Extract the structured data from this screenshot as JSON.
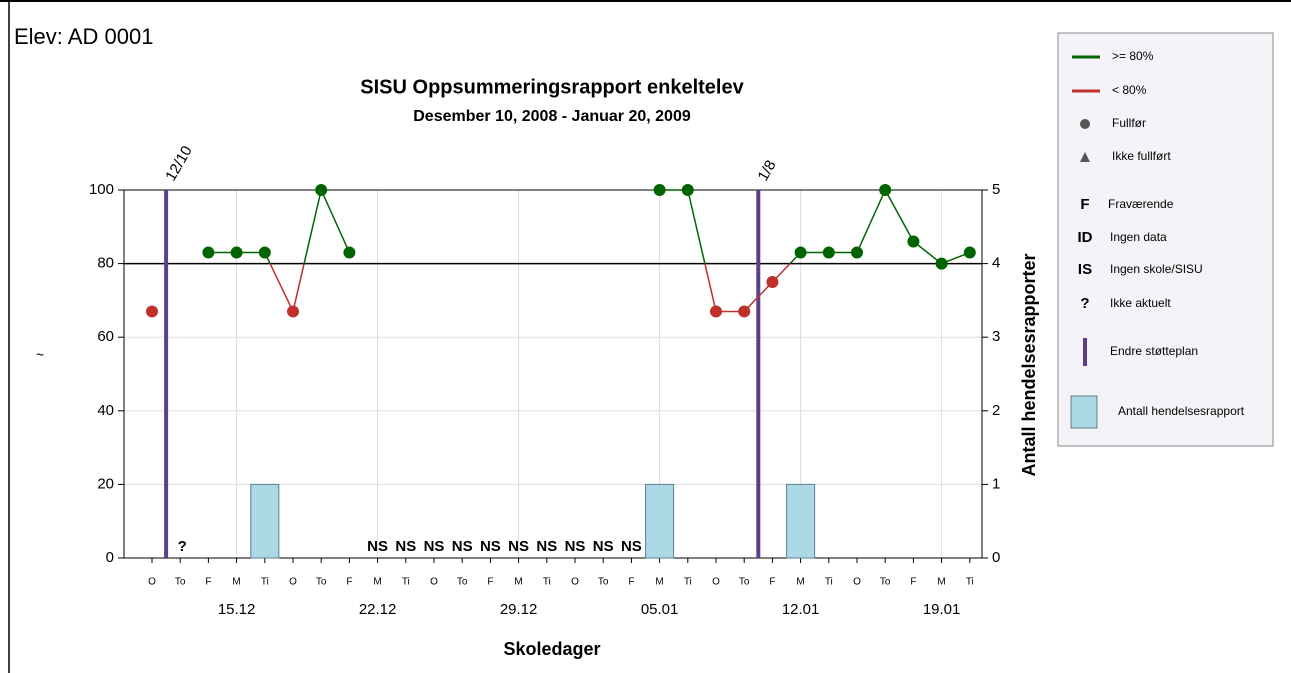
{
  "header": {
    "student": "Elev: AD 0001"
  },
  "chart_data": {
    "type": "line",
    "title": "SISU Oppsummeringsrapport enkeltelev",
    "subtitle": "Desember 10, 2008 - Januar 20, 2009",
    "x_label": "Skoledager",
    "y_label": "~",
    "y2_label": "Antall hendelsesrapporter",
    "categories": [
      "O",
      "To",
      "F",
      "M",
      "Ti",
      "O",
      "To",
      "F",
      "M",
      "Ti",
      "O",
      "To",
      "F",
      "M",
      "Ti",
      "O",
      "To",
      "F",
      "M",
      "Ti",
      "O",
      "To",
      "F",
      "M",
      "Ti",
      "O",
      "To",
      "F",
      "M",
      "Ti"
    ],
    "week_labels": [
      {
        "index": 3,
        "label": "15.12"
      },
      {
        "index": 8,
        "label": "22.12"
      },
      {
        "index": 13,
        "label": "29.12"
      },
      {
        "index": 18,
        "label": "05.01"
      },
      {
        "index": 23,
        "label": "12.01"
      },
      {
        "index": 28,
        "label": "19.01"
      }
    ],
    "values": [
      67,
      null,
      83,
      83,
      83,
      67,
      100,
      83,
      null,
      null,
      null,
      null,
      null,
      null,
      null,
      null,
      null,
      null,
      100,
      100,
      67,
      67,
      75,
      83,
      83,
      83,
      100,
      86,
      80,
      83
    ],
    "status_labels": [
      null,
      "?",
      null,
      null,
      null,
      null,
      null,
      null,
      "NS",
      "NS",
      "NS",
      "NS",
      "NS",
      "NS",
      "NS",
      "NS",
      "NS",
      "NS",
      null,
      null,
      null,
      null,
      null,
      null,
      null,
      null,
      null,
      null,
      null,
      null
    ],
    "threshold": 80,
    "color_above": "#006400",
    "color_below": "#c0302b",
    "bars": {
      "color": "#add8e6",
      "axis": "y2",
      "values": [
        null,
        null,
        null,
        null,
        1,
        null,
        null,
        null,
        null,
        null,
        null,
        null,
        null,
        null,
        null,
        null,
        null,
        null,
        1,
        null,
        null,
        null,
        null,
        1,
        null,
        null,
        null,
        null,
        null,
        null
      ]
    },
    "support_plan_changes": [
      {
        "x": 0.5,
        "label": "12/10"
      },
      {
        "x": 21.5,
        "label": "1/8"
      }
    ],
    "support_color": "#5b3f8c",
    "ylim": [
      0,
      100
    ],
    "yticks": [
      0,
      20,
      40,
      60,
      80,
      100
    ],
    "y2lim": [
      0,
      5
    ],
    "y2ticks": [
      0,
      1,
      2,
      3,
      4,
      5
    ],
    "grid": true,
    "legend": [
      {
        "label": ">= 80%"
      },
      {
        "label": "< 80%"
      },
      {
        "label": "Fullfør"
      },
      {
        "label": "Ikke fullført"
      },
      {
        "code": "F",
        "label": "Fraværende"
      },
      {
        "code": "ID",
        "label": "Ingen data"
      },
      {
        "code": "IS",
        "label": "Ingen skole/SISU"
      },
      {
        "code": "?",
        "label": "Ikke aktuelt"
      },
      {
        "label": "Endre støtteplan"
      },
      {
        "label": "Antall hendelsesrapport"
      }
    ]
  }
}
